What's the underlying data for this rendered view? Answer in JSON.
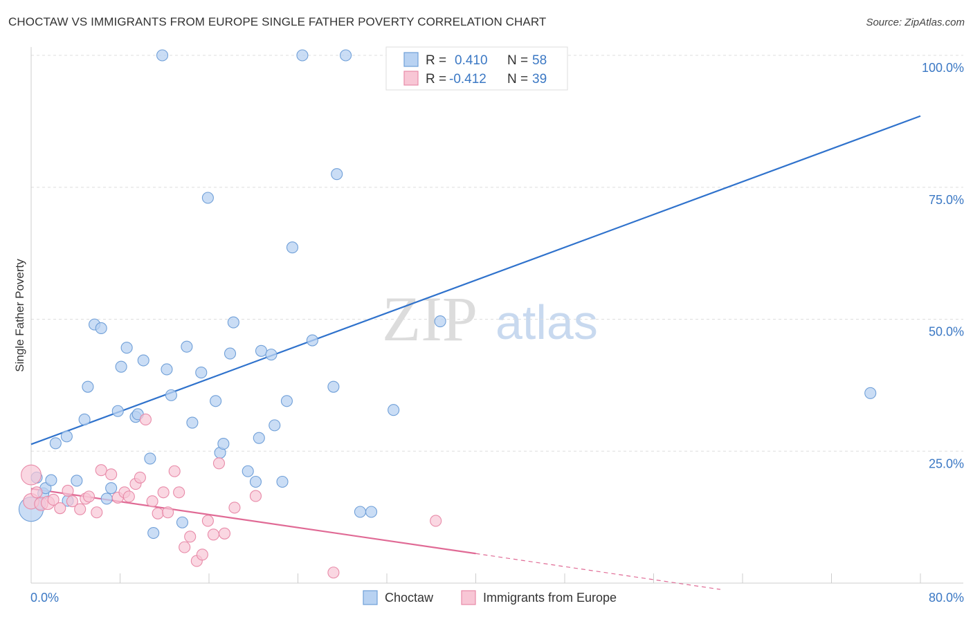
{
  "header": {
    "title": "CHOCTAW VS IMMIGRANTS FROM EUROPE SINGLE FATHER POVERTY CORRELATION CHART",
    "source": "Source: ZipAtlas.com"
  },
  "legend_top": {
    "rows": [
      {
        "r_label": "R =",
        "r_value": "0.410",
        "n_label": "N =",
        "n_value": "58"
      },
      {
        "r_label": "R =",
        "r_value": "-0.412",
        "n_label": "N =",
        "n_value": "39"
      }
    ]
  },
  "legend_bottom": {
    "items": [
      "Choctaw",
      "Immigrants from Europe"
    ]
  },
  "watermark": {
    "zip": "ZIP",
    "atlas": "atlas"
  },
  "colors": {
    "choctaw_fill": "#b8d2f2",
    "choctaw_stroke": "#6f9fd8",
    "choctaw_line": "#2f72cc",
    "europe_fill": "#f8c6d5",
    "europe_stroke": "#e88aa8",
    "europe_line": "#e06a95",
    "tick_text": "#3b78c4"
  },
  "chart_data": {
    "type": "scatter",
    "title": "CHOCTAW VS IMMIGRANTS FROM EUROPE SINGLE FATHER POVERTY CORRELATION CHART",
    "xlabel": "",
    "ylabel": "Single Father Poverty",
    "xlim": [
      0,
      80
    ],
    "ylim": [
      0,
      100
    ],
    "x_tick_labels": [
      "0.0%",
      "80.0%"
    ],
    "y_tick_labels": [
      "25.0%",
      "50.0%",
      "75.0%",
      "100.0%"
    ],
    "y_ticks": [
      25,
      50,
      75,
      100
    ],
    "grid": "horizontal dashed",
    "legend_position": "top-center",
    "series": [
      {
        "name": "Choctaw",
        "R": 0.41,
        "N": 58,
        "trend": {
          "x": [
            0,
            80
          ],
          "y": [
            26.3,
            88.5
          ]
        },
        "points": [
          [
            0.0,
            14.0,
            22
          ],
          [
            0.5,
            20.0,
            10
          ],
          [
            0.8,
            15.0,
            10
          ],
          [
            1.1,
            17.0,
            10
          ],
          [
            1.3,
            18.0,
            10
          ],
          [
            1.8,
            19.5,
            10
          ],
          [
            2.2,
            26.5,
            10
          ],
          [
            3.2,
            27.8,
            10
          ],
          [
            3.3,
            15.6,
            10
          ],
          [
            4.1,
            19.4,
            10
          ],
          [
            4.8,
            31.0,
            10
          ],
          [
            5.1,
            37.2,
            10
          ],
          [
            5.7,
            49.0,
            10
          ],
          [
            6.3,
            48.3,
            10
          ],
          [
            6.8,
            16.0,
            10
          ],
          [
            7.2,
            18.0,
            10
          ],
          [
            7.8,
            32.6,
            10
          ],
          [
            8.1,
            41.0,
            10
          ],
          [
            8.6,
            44.6,
            10
          ],
          [
            9.4,
            31.5,
            10
          ],
          [
            9.6,
            32.0,
            10
          ],
          [
            10.1,
            42.2,
            10
          ],
          [
            10.7,
            23.6,
            10
          ],
          [
            11.0,
            9.5,
            10
          ],
          [
            11.8,
            100.0,
            10
          ],
          [
            12.2,
            40.5,
            10
          ],
          [
            12.6,
            35.6,
            10
          ],
          [
            13.6,
            11.5,
            10
          ],
          [
            14.0,
            44.8,
            10
          ],
          [
            14.5,
            30.4,
            10
          ],
          [
            15.3,
            39.9,
            10
          ],
          [
            15.9,
            73.0,
            10
          ],
          [
            16.6,
            34.5,
            10
          ],
          [
            17.0,
            24.7,
            10
          ],
          [
            17.3,
            26.4,
            10
          ],
          [
            17.9,
            43.5,
            10
          ],
          [
            18.2,
            49.4,
            10
          ],
          [
            19.5,
            21.2,
            10
          ],
          [
            20.2,
            19.2,
            10
          ],
          [
            20.5,
            27.5,
            10
          ],
          [
            20.7,
            44.0,
            10
          ],
          [
            21.6,
            43.3,
            10
          ],
          [
            21.9,
            29.9,
            10
          ],
          [
            22.6,
            19.2,
            10
          ],
          [
            23.0,
            34.5,
            10
          ],
          [
            23.5,
            63.6,
            10
          ],
          [
            24.4,
            100.0,
            10
          ],
          [
            25.3,
            46.0,
            10
          ],
          [
            27.2,
            37.2,
            10
          ],
          [
            27.5,
            77.5,
            10
          ],
          [
            28.3,
            100.0,
            10
          ],
          [
            29.6,
            13.5,
            10
          ],
          [
            30.6,
            13.5,
            10
          ],
          [
            32.6,
            32.8,
            10
          ],
          [
            34.5,
            100.0,
            10
          ],
          [
            36.5,
            100.0,
            10
          ],
          [
            36.8,
            49.6,
            10
          ],
          [
            75.5,
            36.0,
            10
          ]
        ]
      },
      {
        "name": "Immigrants from Europe",
        "R": -0.412,
        "N": 39,
        "trend": {
          "x": [
            0,
            40
          ],
          "y": [
            17.9,
            5.6
          ]
        },
        "trend_dashed": {
          "x": [
            40,
            62
          ],
          "y": [
            5.6,
            -1.2
          ]
        },
        "points": [
          [
            0.0,
            20.5,
            18
          ],
          [
            0.0,
            15.5,
            14
          ],
          [
            0.9,
            15.0,
            12
          ],
          [
            1.5,
            15.2,
            12
          ],
          [
            2.0,
            15.8,
            10
          ],
          [
            2.6,
            14.2,
            10
          ],
          [
            3.3,
            17.5,
            10
          ],
          [
            3.7,
            15.5,
            10
          ],
          [
            4.4,
            14.0,
            10
          ],
          [
            4.9,
            16.0,
            10
          ],
          [
            5.2,
            16.4,
            10
          ],
          [
            5.9,
            13.4,
            10
          ],
          [
            6.3,
            21.4,
            10
          ],
          [
            7.2,
            20.6,
            10
          ],
          [
            7.8,
            16.2,
            10
          ],
          [
            8.4,
            17.2,
            10
          ],
          [
            8.8,
            16.4,
            10
          ],
          [
            9.4,
            18.8,
            10
          ],
          [
            9.8,
            20.0,
            10
          ],
          [
            10.3,
            31.0,
            10
          ],
          [
            10.9,
            15.5,
            10
          ],
          [
            11.4,
            13.2,
            10
          ],
          [
            11.9,
            17.2,
            10
          ],
          [
            12.3,
            13.4,
            10
          ],
          [
            12.9,
            21.2,
            10
          ],
          [
            13.3,
            17.2,
            10
          ],
          [
            13.8,
            6.8,
            10
          ],
          [
            14.3,
            8.8,
            10
          ],
          [
            14.9,
            4.2,
            10
          ],
          [
            15.4,
            5.4,
            10
          ],
          [
            15.9,
            11.8,
            10
          ],
          [
            16.4,
            9.2,
            10
          ],
          [
            16.9,
            22.7,
            10
          ],
          [
            17.4,
            9.4,
            10
          ],
          [
            18.3,
            14.3,
            10
          ],
          [
            20.2,
            16.5,
            10
          ],
          [
            27.2,
            2.0,
            10
          ],
          [
            36.4,
            11.8,
            10
          ],
          [
            0.5,
            17.2,
            10
          ]
        ]
      }
    ]
  }
}
